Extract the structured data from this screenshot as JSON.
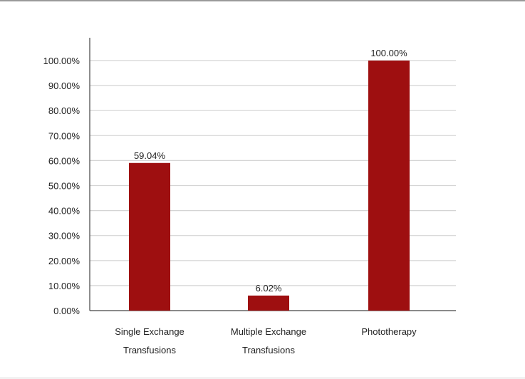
{
  "chart_data": {
    "type": "bar",
    "title": "",
    "xlabel": "",
    "ylabel": "",
    "categories": [
      [
        "Single Exchange",
        "Transfusions"
      ],
      [
        "Multiple Exchange",
        "Transfusions"
      ],
      [
        "Phototherapy"
      ]
    ],
    "values": [
      59.04,
      6.02,
      100.0
    ],
    "data_labels": [
      "59.04%",
      "6.02%",
      "100.00%"
    ],
    "ylim": [
      0,
      100
    ],
    "yticks": [
      "0.00%",
      "10.00%",
      "20.00%",
      "30.00%",
      "40.00%",
      "50.00%",
      "60.00%",
      "70.00%",
      "80.00%",
      "90.00%",
      "100.00%"
    ],
    "grid": true,
    "legend": "none",
    "bar_color": "#9e0f10"
  }
}
